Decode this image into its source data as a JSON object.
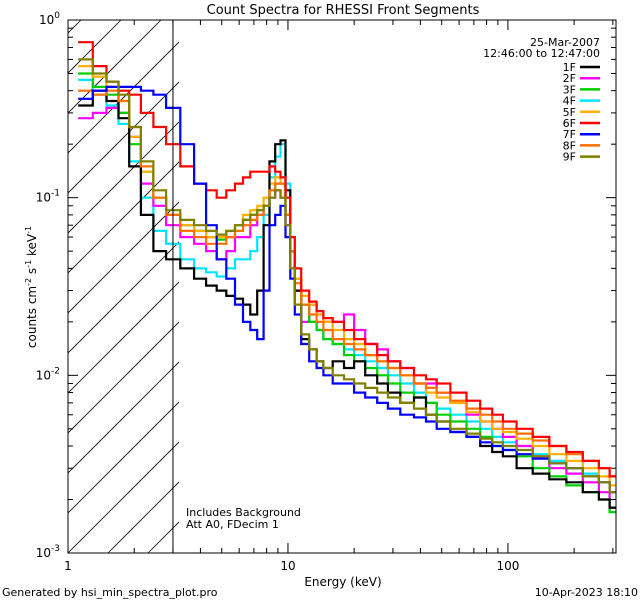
{
  "footer": {
    "left": "Generated by hsi_min_spectra_plot.pro",
    "right": "10-Apr-2023 18:10"
  },
  "chart_data": {
    "type": "line",
    "title": "Count Spectra for RHESSI Front Segments",
    "xlabel": "Energy (keV)",
    "ylabel_main": "counts cm",
    "ylabel_exp1": "-2",
    "ylabel_mid": " s",
    "ylabel_exp2": "-1",
    "ylabel_end": " keV",
    "ylabel_exp3": "-1",
    "xscale": "log",
    "yscale": "log",
    "xlim": [
      1,
      310
    ],
    "ylim": [
      0.001,
      1
    ],
    "x_ticks": [
      {
        "value": 1,
        "label": "1"
      },
      {
        "value": 10,
        "label": "10"
      },
      {
        "value": 100,
        "label": "100"
      }
    ],
    "y_ticks": [
      {
        "value": 1,
        "base": "10",
        "exp": "0"
      },
      {
        "value": 0.1,
        "base": "10",
        "exp": "-1"
      },
      {
        "value": 0.01,
        "base": "10",
        "exp": "-2"
      },
      {
        "value": 0.001,
        "base": "10",
        "exp": "-3"
      }
    ],
    "date": "25-Mar-2007",
    "time_range": "12:46:00 to 12:47:00",
    "hatched_region_max_energy": 3,
    "annotations": [
      "Includes Background",
      "Att A0, FDecim 1"
    ],
    "energies": [
      1.2,
      1.4,
      1.6,
      1.8,
      2.0,
      2.3,
      2.6,
      3.0,
      3.5,
      4.0,
      4.5,
      5.0,
      5.5,
      6.0,
      6.5,
      7.0,
      7.5,
      8.0,
      8.5,
      9.0,
      9.5,
      10.0,
      10.5,
      11.0,
      12,
      13,
      14,
      15,
      17,
      19,
      21,
      24,
      27,
      30,
      35,
      40,
      45,
      50,
      60,
      70,
      80,
      90,
      100,
      120,
      140,
      170,
      200,
      240,
      280,
      300
    ],
    "series": [
      {
        "name": "1F",
        "color": "#000000",
        "values": [
          0.33,
          0.4,
          0.35,
          0.28,
          0.15,
          0.08,
          0.05,
          0.045,
          0.04,
          0.035,
          0.032,
          0.03,
          0.028,
          0.027,
          0.025,
          0.022,
          0.03,
          0.07,
          0.16,
          0.2,
          0.21,
          0.11,
          0.05,
          0.03,
          0.016,
          0.014,
          0.012,
          0.011,
          0.012,
          0.011,
          0.012,
          0.01,
          0.009,
          0.008,
          0.007,
          0.0075,
          0.006,
          0.0055,
          0.0048,
          0.0045,
          0.004,
          0.0037,
          0.0035,
          0.003,
          0.0028,
          0.0026,
          0.0025,
          0.0022,
          0.002,
          0.0018
        ]
      },
      {
        "name": "2F",
        "color": "#ff00ff",
        "values": [
          0.28,
          0.3,
          0.32,
          0.3,
          0.22,
          0.12,
          0.09,
          0.07,
          0.06,
          0.055,
          0.05,
          0.045,
          0.05,
          0.06,
          0.06,
          0.07,
          0.08,
          0.09,
          0.1,
          0.11,
          0.1,
          0.07,
          0.04,
          0.03,
          0.02,
          0.025,
          0.022,
          0.02,
          0.02,
          0.022,
          0.018,
          0.015,
          0.014,
          0.012,
          0.011,
          0.009,
          0.009,
          0.008,
          0.007,
          0.006,
          0.0055,
          0.005,
          0.0045,
          0.004,
          0.0035,
          0.003,
          0.0028,
          0.0025,
          0.0022,
          0.0018
        ]
      },
      {
        "name": "3F",
        "color": "#00d000",
        "values": [
          0.5,
          0.42,
          0.38,
          0.3,
          0.2,
          0.14,
          0.1,
          0.08,
          0.07,
          0.065,
          0.06,
          0.058,
          0.06,
          0.07,
          0.075,
          0.08,
          0.085,
          0.09,
          0.11,
          0.12,
          0.12,
          0.08,
          0.05,
          0.035,
          0.025,
          0.02,
          0.018,
          0.016,
          0.015,
          0.013,
          0.012,
          0.011,
          0.01,
          0.009,
          0.008,
          0.0075,
          0.007,
          0.006,
          0.0055,
          0.005,
          0.0045,
          0.004,
          0.0038,
          0.0035,
          0.003,
          0.0027,
          0.0024,
          0.0022,
          0.002,
          0.0017
        ]
      },
      {
        "name": "4F",
        "color": "#00e5ff",
        "values": [
          0.46,
          0.38,
          0.33,
          0.26,
          0.16,
          0.1,
          0.065,
          0.055,
          0.045,
          0.04,
          0.038,
          0.036,
          0.04,
          0.045,
          0.045,
          0.05,
          0.06,
          0.08,
          0.13,
          0.17,
          0.2,
          0.12,
          0.06,
          0.035,
          0.025,
          0.02,
          0.018,
          0.016,
          0.015,
          0.014,
          0.013,
          0.012,
          0.011,
          0.01,
          0.009,
          0.008,
          0.007,
          0.0065,
          0.006,
          0.0055,
          0.005,
          0.0045,
          0.0042,
          0.004,
          0.0036,
          0.0033,
          0.003,
          0.0028,
          0.0025,
          0.0022
        ]
      },
      {
        "name": "5F",
        "color": "#ffb000",
        "values": [
          0.55,
          0.48,
          0.42,
          0.35,
          0.22,
          0.14,
          0.1,
          0.08,
          0.07,
          0.065,
          0.06,
          0.06,
          0.065,
          0.07,
          0.08,
          0.085,
          0.09,
          0.1,
          0.12,
          0.13,
          0.12,
          0.08,
          0.05,
          0.035,
          0.028,
          0.025,
          0.022,
          0.02,
          0.018,
          0.016,
          0.015,
          0.013,
          0.012,
          0.011,
          0.01,
          0.009,
          0.008,
          0.0075,
          0.007,
          0.0062,
          0.0055,
          0.005,
          0.0048,
          0.0044,
          0.004,
          0.0036,
          0.0033,
          0.003,
          0.0027,
          0.0024
        ]
      },
      {
        "name": "6F",
        "color": "#ff0000",
        "values": [
          0.75,
          0.55,
          0.45,
          0.4,
          0.38,
          0.3,
          0.25,
          0.2,
          0.15,
          0.12,
          0.11,
          0.1,
          0.11,
          0.12,
          0.13,
          0.14,
          0.14,
          0.14,
          0.15,
          0.14,
          0.13,
          0.1,
          0.06,
          0.04,
          0.03,
          0.026,
          0.023,
          0.021,
          0.02,
          0.018,
          0.016,
          0.015,
          0.013,
          0.012,
          0.011,
          0.01,
          0.0095,
          0.009,
          0.008,
          0.0072,
          0.0065,
          0.006,
          0.0055,
          0.005,
          0.0045,
          0.004,
          0.0037,
          0.0033,
          0.003,
          0.0027
        ]
      },
      {
        "name": "7F",
        "color": "#0000ff",
        "values": [
          0.36,
          0.4,
          0.42,
          0.42,
          0.42,
          0.4,
          0.38,
          0.32,
          0.2,
          0.12,
          0.07,
          0.045,
          0.035,
          0.025,
          0.02,
          0.018,
          0.016,
          0.03,
          0.07,
          0.08,
          0.09,
          0.06,
          0.035,
          0.022,
          0.015,
          0.012,
          0.011,
          0.01,
          0.009,
          0.009,
          0.008,
          0.0075,
          0.007,
          0.0065,
          0.006,
          0.0058,
          0.0055,
          0.005,
          0.0048,
          0.0045,
          0.0042,
          0.004,
          0.0038,
          0.0036,
          0.0034,
          0.0032,
          0.003,
          0.0027,
          0.0025,
          0.0022
        ]
      },
      {
        "name": "8F",
        "color": "#ff7000",
        "values": [
          0.4,
          0.38,
          0.4,
          0.35,
          0.25,
          0.15,
          0.1,
          0.08,
          0.065,
          0.06,
          0.055,
          0.055,
          0.06,
          0.065,
          0.07,
          0.075,
          0.08,
          0.09,
          0.11,
          0.12,
          0.12,
          0.08,
          0.05,
          0.033,
          0.025,
          0.022,
          0.02,
          0.018,
          0.016,
          0.015,
          0.014,
          0.013,
          0.012,
          0.011,
          0.01,
          0.009,
          0.0085,
          0.008,
          0.0072,
          0.0065,
          0.006,
          0.0055,
          0.005,
          0.0047,
          0.0043,
          0.004,
          0.0036,
          0.0033,
          0.003,
          0.0027
        ]
      },
      {
        "name": "9F",
        "color": "#808000",
        "values": [
          0.6,
          0.5,
          0.45,
          0.38,
          0.25,
          0.16,
          0.11,
          0.085,
          0.075,
          0.07,
          0.065,
          0.062,
          0.065,
          0.07,
          0.075,
          0.08,
          0.085,
          0.09,
          0.1,
          0.11,
          0.1,
          0.07,
          0.04,
          0.025,
          0.017,
          0.014,
          0.012,
          0.011,
          0.01,
          0.0095,
          0.009,
          0.0085,
          0.008,
          0.0075,
          0.007,
          0.0065,
          0.006,
          0.0055,
          0.005,
          0.0047,
          0.0044,
          0.0042,
          0.004,
          0.0038,
          0.0035,
          0.0032,
          0.003,
          0.0027,
          0.0025,
          0.0022
        ]
      }
    ]
  }
}
